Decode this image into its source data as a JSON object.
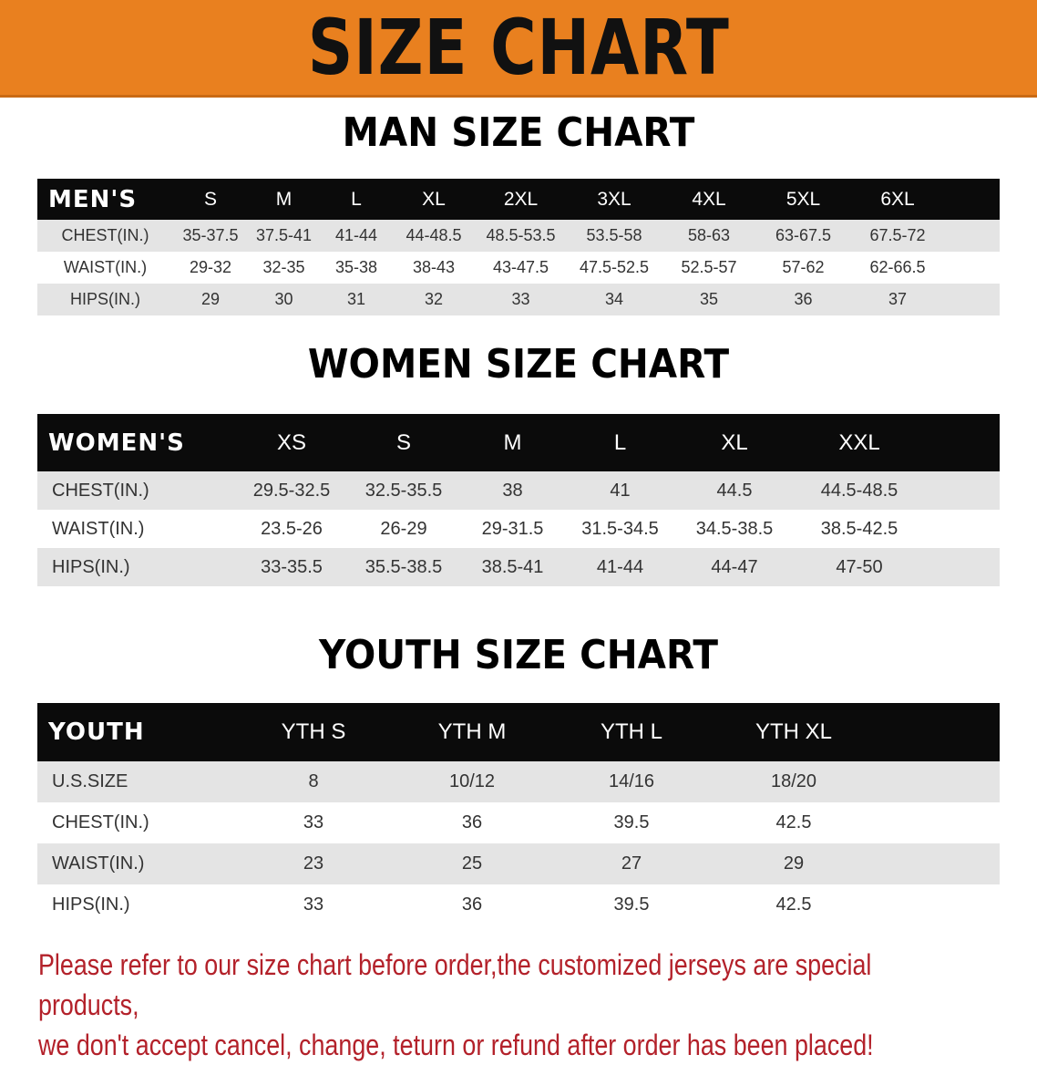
{
  "banner_title": "SIZE CHART",
  "men": {
    "title": "MAN SIZE CHART",
    "header": [
      "MEN'S",
      "S",
      "M",
      "L",
      "XL",
      "2XL",
      "3XL",
      "4XL",
      "5XL",
      "6XL"
    ],
    "rows": [
      [
        "CHEST(IN.)",
        "35-37.5",
        "37.5-41",
        "41-44",
        "44-48.5",
        "48.5-53.5",
        "53.5-58",
        "58-63",
        "63-67.5",
        "67.5-72"
      ],
      [
        "WAIST(IN.)",
        "29-32",
        "32-35",
        "35-38",
        "38-43",
        "43-47.5",
        "47.5-52.5",
        "52.5-57",
        "57-62",
        "62-66.5"
      ],
      [
        "HIPS(IN.)",
        "29",
        "30",
        "31",
        "32",
        "33",
        "34",
        "35",
        "36",
        "37"
      ]
    ]
  },
  "women": {
    "title": "WOMEN SIZE CHART",
    "header": [
      "WOMEN'S",
      "XS",
      "S",
      "M",
      "L",
      "XL",
      "XXL"
    ],
    "rows": [
      [
        "CHEST(IN.)",
        "29.5-32.5",
        "32.5-35.5",
        "38",
        "41",
        "44.5",
        "44.5-48.5"
      ],
      [
        "WAIST(IN.)",
        "23.5-26",
        "26-29",
        "29-31.5",
        "31.5-34.5",
        "34.5-38.5",
        "38.5-42.5"
      ],
      [
        "HIPS(IN.)",
        "33-35.5",
        "35.5-38.5",
        "38.5-41",
        "41-44",
        "44-47",
        "47-50"
      ]
    ]
  },
  "youth": {
    "title": "YOUTH SIZE CHART",
    "header": [
      "YOUTH",
      "YTH S",
      "YTH M",
      "YTH L",
      "YTH XL"
    ],
    "rows": [
      [
        "U.S.SIZE",
        "8",
        "10/12",
        "14/16",
        "18/20"
      ],
      [
        "CHEST(IN.)",
        "33",
        "36",
        "39.5",
        "42.5"
      ],
      [
        "WAIST(IN.)",
        "23",
        "25",
        "27",
        "29"
      ],
      [
        "HIPS(IN.)",
        "33",
        "36",
        "39.5",
        "42.5"
      ]
    ]
  },
  "notice": {
    "line1": "Please refer to our size chart before order,the customized jerseys are special products,",
    "line2": "we don't accept cancel, change, teturn or refund after order has been placed!"
  },
  "colors": {
    "banner": "#e9801f",
    "header_row": "#0b0b0b",
    "stripe": "#e4e4e4",
    "notice": "#b3212a"
  }
}
